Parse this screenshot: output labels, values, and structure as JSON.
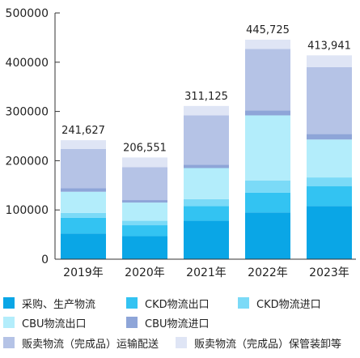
{
  "chart_data": {
    "type": "bar",
    "stacked": true,
    "categories": [
      "2019年",
      "2020年",
      "2021年",
      "2022年",
      "2023年"
    ],
    "ylim": [
      0,
      500000
    ],
    "yticks": [
      "0",
      "100000",
      "200000",
      "300000",
      "400000",
      "500000"
    ],
    "grid": false,
    "legend_position": "bottom",
    "totals": [
      "241,627",
      "206,551",
      "311,125",
      "445,725",
      "413,941"
    ],
    "series": [
      {
        "name": "采购、生产物流",
        "color": "#0aa6e6",
        "values": [
          52000,
          47000,
          78000,
          95000,
          108000
        ]
      },
      {
        "name": "CKD物流出口",
        "color": "#33c3f2",
        "values": [
          32000,
          22000,
          30000,
          40000,
          40000
        ]
      },
      {
        "name": "CKD物流进口",
        "color": "#7bdaf7",
        "values": [
          10000,
          9000,
          14000,
          25000,
          18000
        ]
      },
      {
        "name": "CBU物流出口",
        "color": "#b3edfb",
        "values": [
          43000,
          37000,
          63000,
          132000,
          77000
        ]
      },
      {
        "name": "CBU物流进口",
        "color": "#8ea5d8",
        "values": [
          7000,
          5000,
          7000,
          10000,
          11000
        ]
      },
      {
        "name": "贩卖物流（完成品）运输配送",
        "color": "#b5c3e6",
        "values": [
          80000,
          67000,
          100000,
          125000,
          136000
        ]
      },
      {
        "name": "贩卖物流（完成品）保管装卸等",
        "color": "#dfe5f5",
        "values": [
          17627,
          19551,
          19125,
          18725,
          23941
        ]
      }
    ]
  }
}
